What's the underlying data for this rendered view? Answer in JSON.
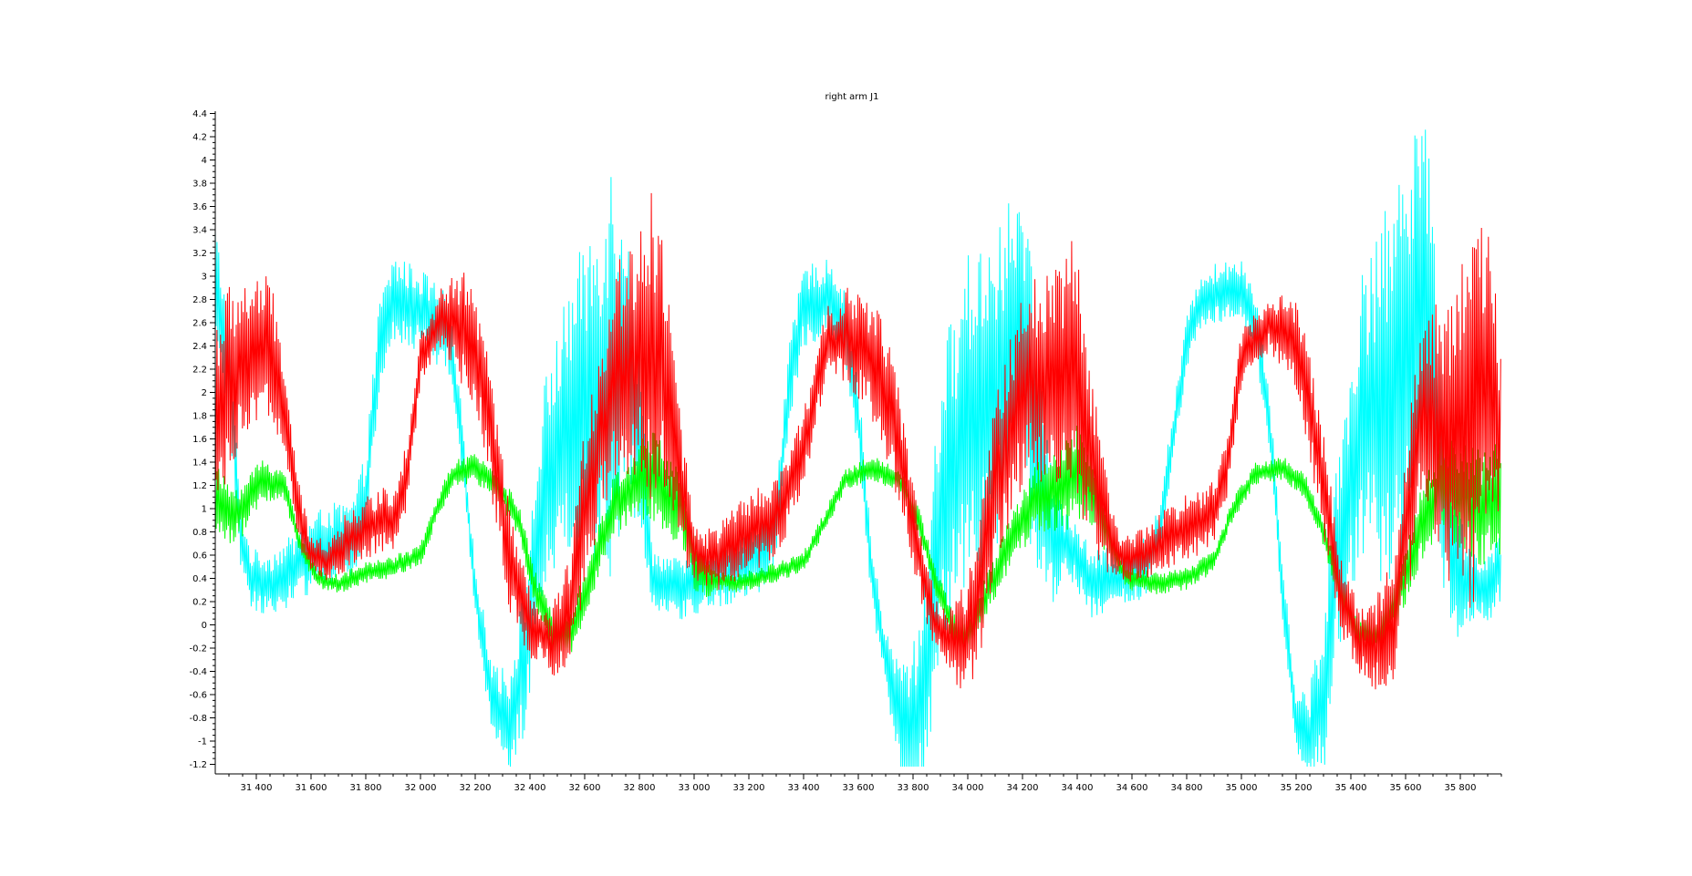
{
  "chart_data": {
    "type": "line",
    "title": "right arm J1",
    "xlabel": "",
    "ylabel": "",
    "xlim": [
      31250,
      35950
    ],
    "ylim": [
      -1.25,
      4.42
    ],
    "x_ticks": [
      31400,
      31600,
      31800,
      32000,
      32200,
      32400,
      32600,
      32800,
      33000,
      33200,
      33400,
      33600,
      33800,
      34000,
      34200,
      34400,
      34600,
      34800,
      35000,
      35200,
      35400,
      35600,
      35800
    ],
    "x_tick_labels": [
      "31 400",
      "31 600",
      "31 800",
      "32 000",
      "32 200",
      "32 400",
      "32 600",
      "32 800",
      "33 000",
      "33 200",
      "33 400",
      "33 600",
      "33 800",
      "34 000",
      "34 200",
      "34 400",
      "34 600",
      "34 800",
      "35 000",
      "35 200",
      "35 400",
      "35 600",
      "35 800"
    ],
    "y_ticks": [
      -1.2,
      -1,
      -0.8,
      -0.6,
      -0.4,
      -0.2,
      0,
      0.2,
      0.4,
      0.6,
      0.8,
      1,
      1.2,
      1.4,
      1.6,
      1.8,
      2,
      2.2,
      2.4,
      2.6,
      2.8,
      3,
      3.2,
      3.4,
      3.6,
      3.8,
      4,
      4.2,
      4.4
    ],
    "y_tick_labels": [
      "-1.2",
      "-1",
      "-0.8",
      "-0.6",
      "-0.4",
      "-0.2",
      "0",
      "0.2",
      "0.4",
      "0.6",
      "0.8",
      "1",
      "1.2",
      "1.4",
      "1.6",
      "1.8",
      "2",
      "2.2",
      "2.4",
      "2.6",
      "2.8",
      "3",
      "3.2",
      "3.4",
      "3.6",
      "3.8",
      "4",
      "4.2",
      "4.4"
    ],
    "grid": false,
    "legend": "none",
    "series": [
      {
        "color": "#00ffff",
        "base": [
          [
            31250,
            2.9
          ],
          [
            31300,
            2.2
          ],
          [
            31340,
            0.8
          ],
          [
            31380,
            0.4
          ],
          [
            31450,
            0.35
          ],
          [
            31550,
            0.5
          ],
          [
            31650,
            0.7
          ],
          [
            31750,
            0.7
          ],
          [
            31800,
            1.1
          ],
          [
            31850,
            2.4
          ],
          [
            31900,
            2.8
          ],
          [
            32000,
            2.7
          ],
          [
            32100,
            2.5
          ],
          [
            32150,
            1.6
          ],
          [
            32200,
            0.3
          ],
          [
            32260,
            -0.6
          ],
          [
            32320,
            -0.9
          ],
          [
            32380,
            -0.3
          ],
          [
            32450,
            1.2
          ],
          [
            32550,
            1.8
          ],
          [
            32650,
            2.0
          ],
          [
            32750,
            2.4
          ],
          [
            32800,
            1.6
          ],
          [
            32850,
            0.4
          ],
          [
            32950,
            0.3
          ],
          [
            33050,
            0.4
          ],
          [
            33150,
            0.5
          ],
          [
            33250,
            0.6
          ],
          [
            33300,
            0.9
          ],
          [
            33350,
            2.1
          ],
          [
            33400,
            2.75
          ],
          [
            33500,
            2.8
          ],
          [
            33550,
            2.6
          ],
          [
            33600,
            1.8
          ],
          [
            33650,
            0.4
          ],
          [
            33700,
            -0.3
          ],
          [
            33750,
            -0.8
          ],
          [
            33800,
            -0.95
          ],
          [
            33850,
            -0.4
          ],
          [
            33900,
            1.0
          ],
          [
            34000,
            1.8
          ],
          [
            34100,
            2.0
          ],
          [
            34200,
            2.5
          ],
          [
            34250,
            1.5
          ],
          [
            34300,
            0.8
          ],
          [
            34400,
            0.6
          ],
          [
            34450,
            0.35
          ],
          [
            34550,
            0.4
          ],
          [
            34650,
            0.5
          ],
          [
            34700,
            0.8
          ],
          [
            34750,
            1.6
          ],
          [
            34800,
            2.4
          ],
          [
            34850,
            2.8
          ],
          [
            35000,
            2.9
          ],
          [
            35050,
            2.6
          ],
          [
            35100,
            1.8
          ],
          [
            35150,
            0.3
          ],
          [
            35200,
            -0.8
          ],
          [
            35250,
            -1.0
          ],
          [
            35300,
            -0.6
          ],
          [
            35350,
            0.6
          ],
          [
            35450,
            1.8
          ],
          [
            35550,
            2.0
          ],
          [
            35650,
            2.8
          ],
          [
            35700,
            2.3
          ],
          [
            35750,
            0.9
          ],
          [
            35800,
            0.4
          ],
          [
            35900,
            0.3
          ],
          [
            35950,
            0.5
          ]
        ],
        "noise": [
          [
            31250,
            0.6
          ],
          [
            31350,
            0.25
          ],
          [
            31850,
            0.4
          ],
          [
            32100,
            0.35
          ],
          [
            32200,
            0.2
          ],
          [
            32400,
            0.7
          ],
          [
            32550,
            1.2
          ],
          [
            32700,
            1.9
          ],
          [
            32780,
            1.0
          ],
          [
            32850,
            0.25
          ],
          [
            33350,
            0.35
          ],
          [
            33550,
            0.35
          ],
          [
            33700,
            0.25
          ],
          [
            33900,
            1.3
          ],
          [
            34100,
            1.5
          ],
          [
            34250,
            1.2
          ],
          [
            34350,
            0.3
          ],
          [
            34800,
            0.25
          ],
          [
            35050,
            0.3
          ],
          [
            35200,
            0.25
          ],
          [
            35400,
            1.2
          ],
          [
            35550,
            1.7
          ],
          [
            35650,
            2.0
          ],
          [
            35750,
            0.8
          ],
          [
            35850,
            0.3
          ],
          [
            35950,
            0.3
          ]
        ]
      },
      {
        "color": "#00ff00",
        "base": [
          [
            31250,
            1.1
          ],
          [
            31300,
            0.95
          ],
          [
            31350,
            1.0
          ],
          [
            31420,
            1.25
          ],
          [
            31500,
            1.2
          ],
          [
            31560,
            0.7
          ],
          [
            31620,
            0.4
          ],
          [
            31700,
            0.35
          ],
          [
            31800,
            0.45
          ],
          [
            31900,
            0.5
          ],
          [
            32000,
            0.6
          ],
          [
            32060,
            1.0
          ],
          [
            32120,
            1.3
          ],
          [
            32200,
            1.35
          ],
          [
            32280,
            1.2
          ],
          [
            32360,
            0.9
          ],
          [
            32420,
            0.3
          ],
          [
            32480,
            -0.05
          ],
          [
            32550,
            -0.05
          ],
          [
            32620,
            0.4
          ],
          [
            32700,
            1.0
          ],
          [
            32800,
            1.25
          ],
          [
            32850,
            1.3
          ],
          [
            32950,
            1.0
          ],
          [
            33000,
            0.55
          ],
          [
            33050,
            0.4
          ],
          [
            33150,
            0.35
          ],
          [
            33300,
            0.45
          ],
          [
            33400,
            0.55
          ],
          [
            33480,
            0.9
          ],
          [
            33550,
            1.25
          ],
          [
            33650,
            1.35
          ],
          [
            33750,
            1.25
          ],
          [
            33820,
            0.9
          ],
          [
            33880,
            0.4
          ],
          [
            33950,
            -0.05
          ],
          [
            34000,
            -0.1
          ],
          [
            34050,
            0.15
          ],
          [
            34150,
            0.7
          ],
          [
            34250,
            1.1
          ],
          [
            34350,
            1.2
          ],
          [
            34400,
            1.3
          ],
          [
            34460,
            1.1
          ],
          [
            34520,
            0.7
          ],
          [
            34580,
            0.4
          ],
          [
            34700,
            0.35
          ],
          [
            34800,
            0.4
          ],
          [
            34900,
            0.55
          ],
          [
            34970,
            1.0
          ],
          [
            35050,
            1.3
          ],
          [
            35150,
            1.35
          ],
          [
            35230,
            1.2
          ],
          [
            35300,
            0.8
          ],
          [
            35360,
            0.3
          ],
          [
            35420,
            -0.05
          ],
          [
            35500,
            -0.1
          ],
          [
            35580,
            0.3
          ],
          [
            35650,
            0.8
          ],
          [
            35730,
            1.2
          ],
          [
            35800,
            1.1
          ],
          [
            35880,
            1.0
          ],
          [
            35950,
            1.1
          ]
        ],
        "noise": [
          [
            31250,
            0.3
          ],
          [
            31600,
            0.08
          ],
          [
            32000,
            0.1
          ],
          [
            32400,
            0.15
          ],
          [
            32700,
            0.25
          ],
          [
            32850,
            0.4
          ],
          [
            32950,
            0.35
          ],
          [
            33100,
            0.08
          ],
          [
            33600,
            0.1
          ],
          [
            34000,
            0.15
          ],
          [
            34250,
            0.3
          ],
          [
            34400,
            0.45
          ],
          [
            34550,
            0.1
          ],
          [
            35100,
            0.1
          ],
          [
            35500,
            0.15
          ],
          [
            35800,
            0.5
          ],
          [
            35950,
            0.5
          ]
        ]
      },
      {
        "color": "#ff0000",
        "base": [
          [
            31250,
            1.8
          ],
          [
            31300,
            2.1
          ],
          [
            31380,
            2.3
          ],
          [
            31450,
            2.4
          ],
          [
            31500,
            1.9
          ],
          [
            31550,
            1.0
          ],
          [
            31600,
            0.6
          ],
          [
            31660,
            0.55
          ],
          [
            31750,
            0.75
          ],
          [
            31850,
            0.9
          ],
          [
            31900,
            0.9
          ],
          [
            31950,
            1.3
          ],
          [
            32000,
            2.3
          ],
          [
            32080,
            2.65
          ],
          [
            32160,
            2.55
          ],
          [
            32220,
            2.2
          ],
          [
            32280,
            1.3
          ],
          [
            32330,
            0.5
          ],
          [
            32400,
            0.0
          ],
          [
            32480,
            -0.15
          ],
          [
            32540,
            0.05
          ],
          [
            32600,
            1.0
          ],
          [
            32660,
            1.7
          ],
          [
            32720,
            2.2
          ],
          [
            32800,
            2.3
          ],
          [
            32880,
            2.4
          ],
          [
            32950,
            1.2
          ],
          [
            33000,
            0.65
          ],
          [
            33050,
            0.55
          ],
          [
            33100,
            0.6
          ],
          [
            33200,
            0.8
          ],
          [
            33300,
            0.9
          ],
          [
            33400,
            1.5
          ],
          [
            33480,
            2.4
          ],
          [
            33550,
            2.5
          ],
          [
            33650,
            2.3
          ],
          [
            33700,
            2.0
          ],
          [
            33760,
            1.4
          ],
          [
            33820,
            0.6
          ],
          [
            33880,
            0.0
          ],
          [
            33950,
            -0.15
          ],
          [
            34000,
            -0.1
          ],
          [
            34050,
            0.4
          ],
          [
            34100,
            1.2
          ],
          [
            34200,
            2.0
          ],
          [
            34300,
            2.2
          ],
          [
            34400,
            2.1
          ],
          [
            34450,
            1.5
          ],
          [
            34500,
            0.9
          ],
          [
            34550,
            0.6
          ],
          [
            34600,
            0.55
          ],
          [
            34700,
            0.7
          ],
          [
            34800,
            0.85
          ],
          [
            34900,
            0.95
          ],
          [
            34950,
            1.4
          ],
          [
            35000,
            2.3
          ],
          [
            35100,
            2.6
          ],
          [
            35200,
            2.4
          ],
          [
            35250,
            1.9
          ],
          [
            35300,
            1.2
          ],
          [
            35360,
            0.3
          ],
          [
            35420,
            -0.1
          ],
          [
            35480,
            -0.2
          ],
          [
            35550,
            0.0
          ],
          [
            35600,
            0.8
          ],
          [
            35650,
            1.7
          ],
          [
            35750,
            1.7
          ],
          [
            35800,
            1.5
          ],
          [
            35850,
            1.8
          ],
          [
            35900,
            2.2
          ],
          [
            35950,
            1.6
          ]
        ],
        "noise": [
          [
            31250,
            0.9
          ],
          [
            31450,
            0.6
          ],
          [
            31600,
            0.15
          ],
          [
            31700,
            0.25
          ],
          [
            31950,
            0.3
          ],
          [
            32050,
            0.2
          ],
          [
            32150,
            0.5
          ],
          [
            32300,
            0.5
          ],
          [
            32450,
            0.2
          ],
          [
            32600,
            0.7
          ],
          [
            32750,
            1.0
          ],
          [
            32850,
            1.4
          ],
          [
            33000,
            0.25
          ],
          [
            33200,
            0.35
          ],
          [
            33500,
            0.35
          ],
          [
            33700,
            0.6
          ],
          [
            33900,
            0.2
          ],
          [
            34100,
            0.8
          ],
          [
            34250,
            0.9
          ],
          [
            34380,
            1.2
          ],
          [
            34550,
            0.2
          ],
          [
            34800,
            0.3
          ],
          [
            35100,
            0.25
          ],
          [
            35250,
            0.5
          ],
          [
            35450,
            0.3
          ],
          [
            35600,
            0.7
          ],
          [
            35700,
            1.0
          ],
          [
            35850,
            1.8
          ],
          [
            35950,
            0.8
          ]
        ]
      }
    ]
  }
}
